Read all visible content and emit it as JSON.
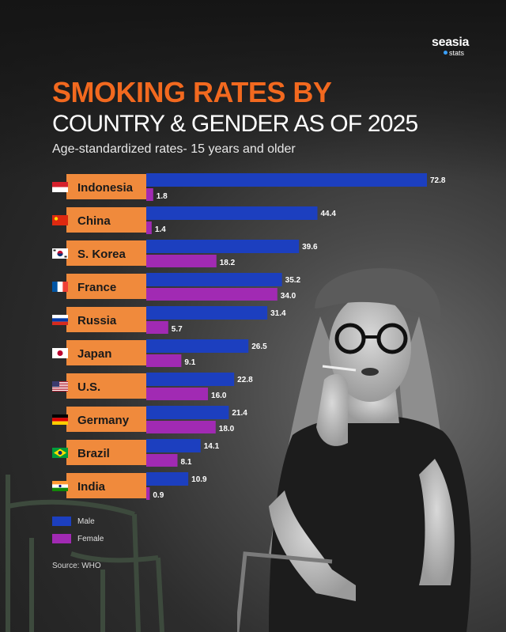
{
  "brand": {
    "name": "seasia",
    "sub": "stats"
  },
  "title_line1": "SMOKING RATES BY",
  "title_line2": "COUNTRY & GENDER AS OF 2025",
  "subtitle": "Age-standardized rates- 15 years and older",
  "source": "Source: WHO",
  "colors": {
    "male": "#1c3fbf",
    "female": "#a12ab3",
    "label_bg": "#f08a3c",
    "title_accent": "#f2691f"
  },
  "chart_data": {
    "type": "bar",
    "orientation": "horizontal",
    "title": "SMOKING RATES BY COUNTRY & GENDER AS OF 2025",
    "subtitle": "Age-standardized rates- 15 years and older",
    "categories": [
      "Indonesia",
      "China",
      "S. Korea",
      "France",
      "Russia",
      "Japan",
      "U.S.",
      "Germany",
      "Brazil",
      "India"
    ],
    "flags": [
      "indonesia-flag-icon",
      "china-flag-icon",
      "south-korea-flag-icon",
      "france-flag-icon",
      "russia-flag-icon",
      "japan-flag-icon",
      "usa-flag-icon",
      "germany-flag-icon",
      "brazil-flag-icon",
      "india-flag-icon"
    ],
    "series": [
      {
        "name": "Male",
        "values": [
          72.8,
          44.4,
          39.6,
          35.2,
          31.4,
          26.5,
          22.8,
          21.4,
          14.1,
          10.9
        ]
      },
      {
        "name": "Female",
        "values": [
          1.8,
          1.4,
          18.2,
          34.0,
          5.7,
          9.1,
          16.0,
          18.0,
          8.1,
          0.9
        ]
      }
    ],
    "value_labels": {
      "Male": [
        "72.8",
        "44.4",
        "39.6",
        "35.2",
        "31.4",
        "26.5",
        "22.8",
        "21.4",
        "14.1",
        "10.9"
      ],
      "Female": [
        "1.8",
        "1.4",
        "18.2",
        "34.0",
        "5.7",
        "9.1",
        "16.0",
        "18.0",
        "8.1",
        "0.9"
      ]
    },
    "xlim": [
      0,
      72.8
    ],
    "grid": false,
    "legend_position": "bottom-left",
    "xlabel": "",
    "ylabel": ""
  }
}
